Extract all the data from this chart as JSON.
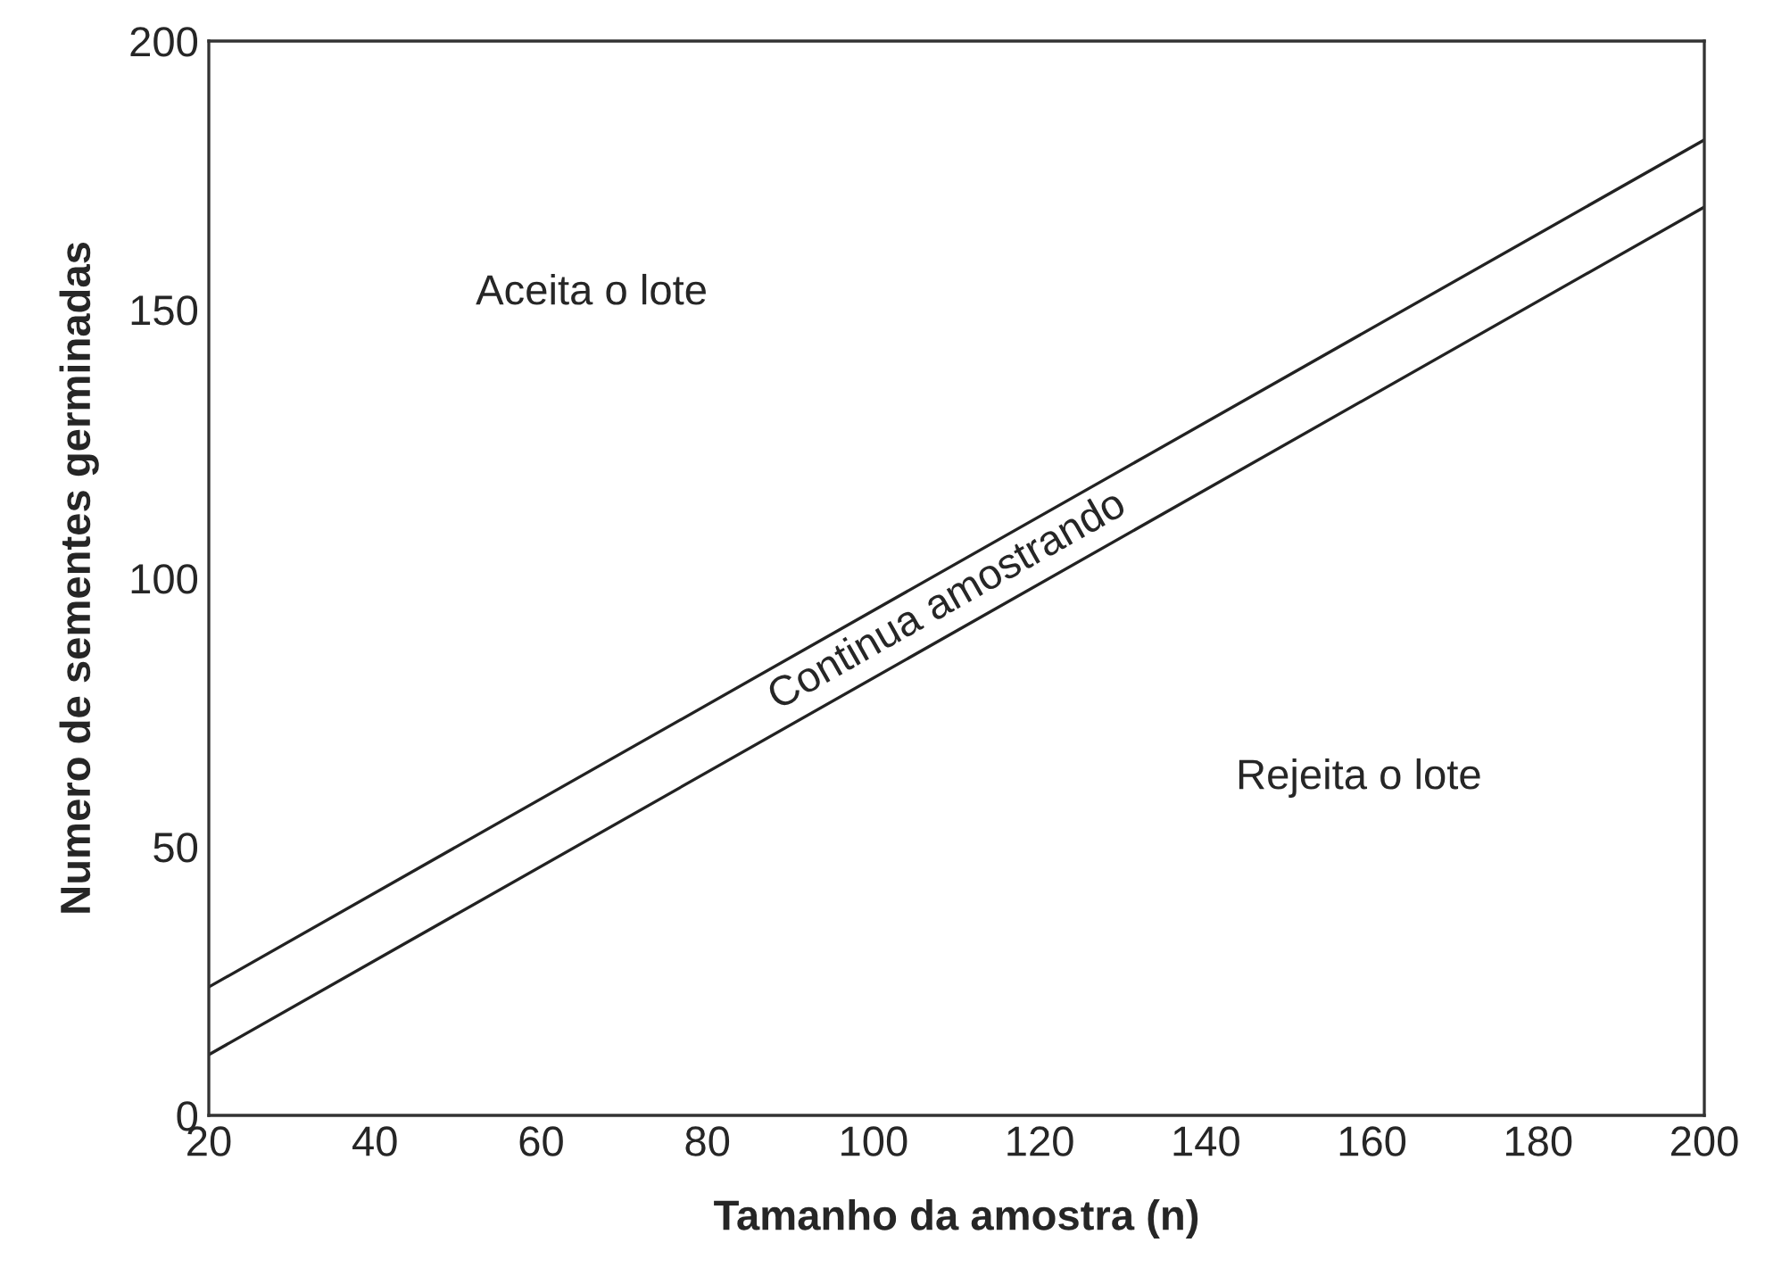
{
  "chart_data": {
    "type": "line",
    "xlabel": "Tamanho da amostra (n)",
    "ylabel": "Numero de sementes germinadas",
    "x": [
      20,
      200
    ],
    "series": [
      {
        "color": "#222222",
        "values": [
          23.9,
          181.6
        ]
      },
      {
        "color": "#222222",
        "values": [
          11.3,
          169.1
        ]
      }
    ],
    "xlim": [
      20,
      200
    ],
    "ylim": [
      0,
      200
    ],
    "xticks": [
      20,
      40,
      60,
      80,
      100,
      120,
      140,
      160,
      180,
      200
    ],
    "yticks": [
      0,
      50,
      100,
      150,
      200
    ],
    "grid": false,
    "marker": "none",
    "line_style": "solid",
    "annotations": [
      "Aceita o lote",
      "Continua amostrando",
      "Rejeita o lote"
    ]
  }
}
